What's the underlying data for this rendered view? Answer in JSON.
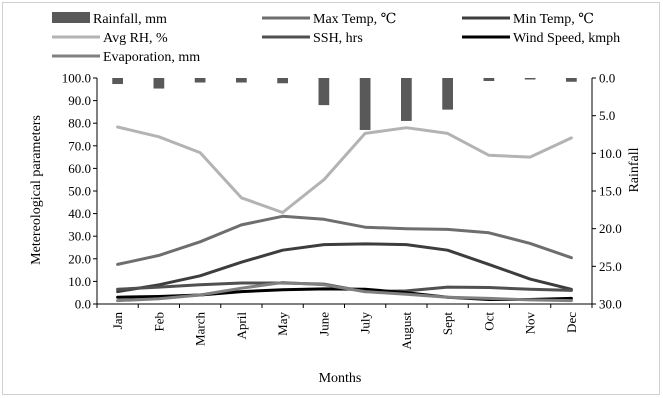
{
  "chart_data": {
    "type": "line",
    "title": "",
    "xlabel": "Months",
    "ylabel": "Metereological parameters",
    "ylabel_right": "Rainfall",
    "categories": [
      "Jan",
      "Feb",
      "March",
      "April",
      "May",
      "June",
      "July",
      "August",
      "Sept",
      "Oct",
      "Nov",
      "Dec"
    ],
    "ylim": [
      0,
      100
    ],
    "y_ticks": [
      "0.0",
      "10.0",
      "20.0",
      "30.0",
      "40.0",
      "50.0",
      "60.0",
      "70.0",
      "80.0",
      "90.0",
      "100.0"
    ],
    "y2lim": [
      0,
      30
    ],
    "y2_reversed": true,
    "y2_ticks": [
      "0.0",
      "5.0",
      "10.0",
      "15.0",
      "20.0",
      "25.0",
      "30.0"
    ],
    "grid": false,
    "legend_position": "top",
    "series": [
      {
        "name": "Rainfall, mm",
        "kind": "bar",
        "axis": "right",
        "color": "#595959",
        "values": [
          0.8,
          1.4,
          0.6,
          0.6,
          0.7,
          3.6,
          6.9,
          5.7,
          4.2,
          0.4,
          0.2,
          0.5
        ]
      },
      {
        "name": "Max Temp, ℃",
        "kind": "line",
        "axis": "left",
        "color": "#6e6e6e",
        "values": [
          17.5,
          21.5,
          27.5,
          35.0,
          38.8,
          37.5,
          34.0,
          33.3,
          33.0,
          31.5,
          26.8,
          20.5
        ]
      },
      {
        "name": "Min Temp, ℃",
        "kind": "line",
        "axis": "left",
        "color": "#3d3d3d",
        "values": [
          5.5,
          8.5,
          12.5,
          18.5,
          23.8,
          26.3,
          26.6,
          26.3,
          23.8,
          17.5,
          11.0,
          6.5
        ]
      },
      {
        "name": "Avg RH, %",
        "kind": "line",
        "axis": "left",
        "color": "#b3b3b3",
        "values": [
          78.3,
          74.0,
          67.0,
          47.0,
          40.5,
          55.0,
          75.5,
          78.0,
          75.5,
          65.8,
          65.0,
          73.5
        ]
      },
      {
        "name": "SSH, hrs",
        "kind": "line",
        "axis": "left",
        "color": "#505050",
        "values": [
          6.5,
          7.5,
          8.5,
          9.3,
          9.3,
          8.8,
          5.5,
          5.8,
          7.5,
          7.3,
          6.5,
          6.0
        ]
      },
      {
        "name": "Wind Speed, kmph",
        "kind": "line",
        "axis": "left",
        "color": "#000000",
        "values": [
          3.0,
          3.3,
          4.0,
          5.5,
          6.3,
          6.7,
          6.5,
          5.0,
          3.0,
          2.0,
          2.0,
          2.5
        ]
      },
      {
        "name": "Evaporation, mm",
        "kind": "line",
        "axis": "left",
        "color": "#808080",
        "values": [
          1.5,
          2.3,
          4.0,
          7.0,
          9.5,
          8.5,
          5.5,
          4.3,
          3.0,
          2.5,
          1.8,
          1.5
        ]
      }
    ]
  }
}
